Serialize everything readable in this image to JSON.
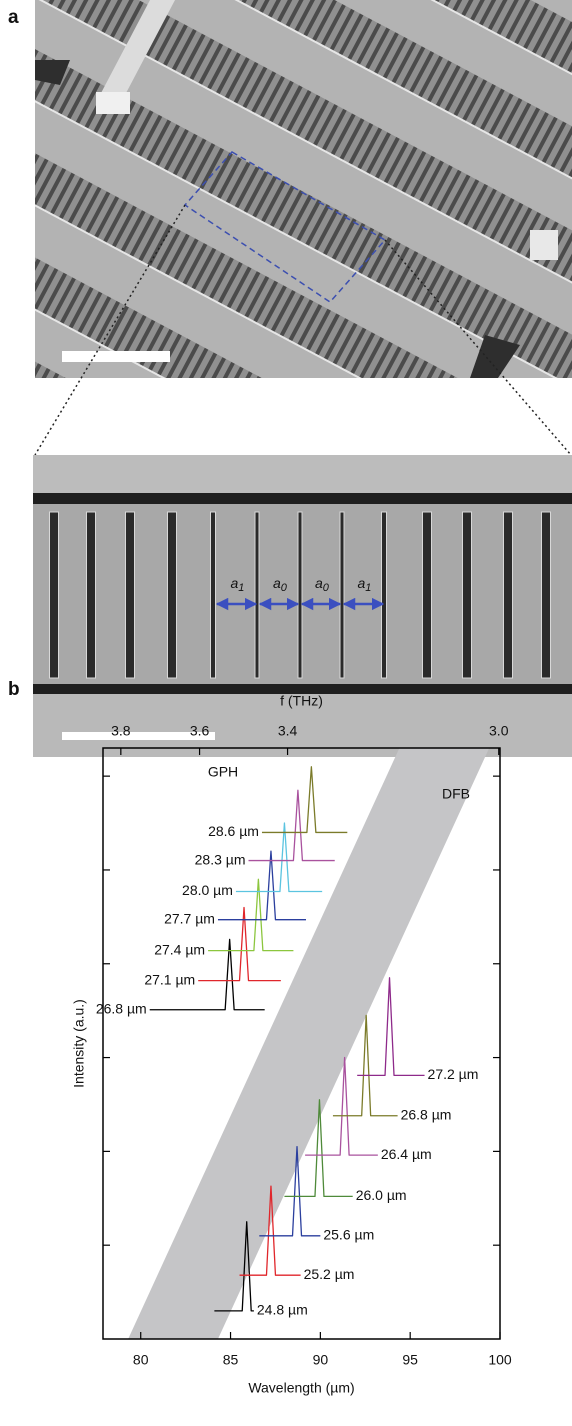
{
  "panel_labels": [
    "a",
    "b"
  ],
  "spacing_labels": [
    {
      "base": "a",
      "sub": "1"
    },
    {
      "base": "a",
      "sub": "0"
    },
    {
      "base": "a",
      "sub": "0"
    },
    {
      "base": "a",
      "sub": "1"
    }
  ],
  "chart_data": {
    "type": "line",
    "x_label": "Wavelength (µm)",
    "y_label": "Intensity (a.u.)",
    "x2_label": "f (THz)",
    "xlim": [
      77.9,
      100
    ],
    "xticks": [
      80,
      85,
      90,
      95,
      100
    ],
    "x2ticks": [
      3.8,
      3.6,
      3.4,
      {
        "value": 3,
        "label": "3.0"
      }
    ],
    "ylim": [
      0,
      6.3
    ],
    "yticks": [
      1,
      2,
      3,
      4,
      5,
      6
    ],
    "band": {
      "x": [
        79.3,
        84.3,
        99.4,
        94.4
      ],
      "y": [
        0,
        0,
        6.3,
        6.3
      ],
      "color": "#c5c5c7"
    },
    "annotations": [
      "GPH",
      "DFB"
    ],
    "series": [
      {
        "name": "26.8 µm",
        "color": "#000000",
        "label_side": "left",
        "x": [
          80.5,
          84.7,
          84.95,
          85.2,
          86.9
        ],
        "values": [
          3.51,
          3.51,
          4.26,
          3.51,
          3.51
        ]
      },
      {
        "name": "27.1 µm",
        "color": "#e0262b",
        "label_side": "left",
        "x": [
          83.2,
          85.5,
          85.75,
          86.0,
          87.8
        ],
        "values": [
          3.82,
          3.82,
          4.6,
          3.82,
          3.82
        ]
      },
      {
        "name": "27.4 µm",
        "color": "#8cc63e",
        "label_side": "left",
        "x": [
          83.75,
          86.3,
          86.55,
          86.8,
          88.5
        ],
        "values": [
          4.14,
          4.14,
          4.9,
          4.14,
          4.14
        ]
      },
      {
        "name": "27.7 µm",
        "color": "#2b3f9e",
        "label_side": "left",
        "x": [
          84.3,
          87.0,
          87.25,
          87.5,
          89.2
        ],
        "values": [
          4.47,
          4.47,
          5.2,
          4.47,
          4.47
        ]
      },
      {
        "name": "28.0 µm",
        "color": "#5bc4e0",
        "label_side": "left",
        "x": [
          85.3,
          87.75,
          88.0,
          88.25,
          90.1
        ],
        "values": [
          4.77,
          4.77,
          5.5,
          4.77,
          4.77
        ]
      },
      {
        "name": "28.3 µm",
        "color": "#a9529e",
        "label_side": "left",
        "x": [
          86.0,
          88.5,
          88.75,
          89.0,
          90.8
        ],
        "values": [
          5.1,
          5.1,
          5.85,
          5.1,
          5.1
        ]
      },
      {
        "name": "28.6 µm",
        "color": "#7b7b2a",
        "label_side": "left",
        "x": [
          86.75,
          89.25,
          89.5,
          89.75,
          91.5
        ],
        "values": [
          5.4,
          5.4,
          6.1,
          5.4,
          5.4
        ]
      },
      {
        "name": "24.8 µm",
        "color": "#000000",
        "label_side": "right",
        "x": [
          84.1,
          85.65,
          85.9,
          86.15,
          86.3
        ],
        "values": [
          0.3,
          0.3,
          1.25,
          0.3,
          0.3
        ]
      },
      {
        "name": "25.2 µm",
        "color": "#e0262b",
        "label_side": "right",
        "x": [
          85.5,
          87.0,
          87.25,
          87.5,
          88.9
        ],
        "values": [
          0.68,
          0.68,
          1.63,
          0.68,
          0.68
        ]
      },
      {
        "name": "25.6 µm",
        "color": "#2b3f9e",
        "label_side": "right",
        "x": [
          86.6,
          88.45,
          88.7,
          88.95,
          90.0
        ],
        "values": [
          1.1,
          1.1,
          2.05,
          1.1,
          1.1
        ]
      },
      {
        "name": "26.0 µm",
        "color": "#4f8a3a",
        "label_side": "right",
        "x": [
          88.0,
          89.7,
          89.95,
          90.2,
          91.8
        ],
        "values": [
          1.52,
          1.52,
          2.55,
          1.52,
          1.52
        ]
      },
      {
        "name": "26.4 µm",
        "color": "#a9529e",
        "label_side": "right",
        "x": [
          89.15,
          91.1,
          91.35,
          91.6,
          93.2
        ],
        "values": [
          1.96,
          1.96,
          3.0,
          1.96,
          1.96
        ]
      },
      {
        "name": "26.8 µm",
        "color": "#7b7b2a",
        "label_side": "right",
        "x": [
          90.7,
          92.3,
          92.55,
          92.8,
          94.3
        ],
        "values": [
          2.38,
          2.38,
          3.45,
          2.38,
          2.38
        ]
      },
      {
        "name": "27.2 µm",
        "color": "#8e2a8a",
        "label_side": "right",
        "x": [
          92.05,
          93.6,
          93.85,
          94.1,
          95.8
        ],
        "values": [
          2.81,
          2.81,
          3.85,
          2.81,
          2.81
        ]
      }
    ]
  }
}
